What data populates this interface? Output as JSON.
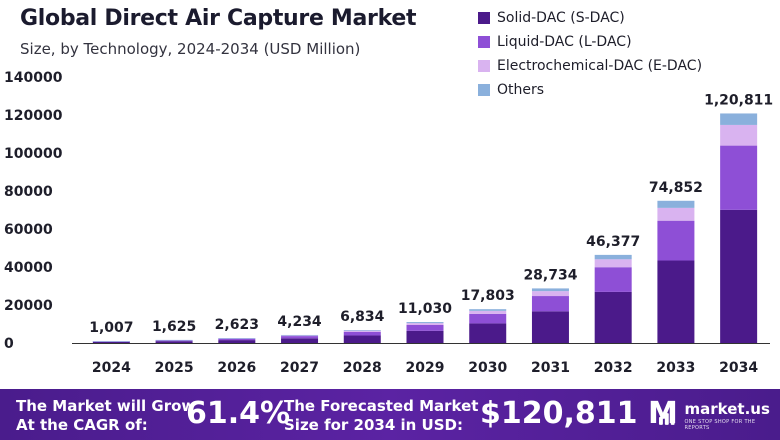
{
  "title": "Global Direct Air Capture Market",
  "subtitle": "Size, by Technology, 2024-2034 (USD Million)",
  "legend": [
    {
      "label": "Solid-DAC (S-DAC)",
      "color": "#4b1a8a"
    },
    {
      "label": "Liquid-DAC (L-DAC)",
      "color": "#8e4fd6"
    },
    {
      "label": "Electrochemical-DAC (E-DAC)",
      "color": "#d9b3f0"
    },
    {
      "label": "Others",
      "color": "#8ab0dc"
    }
  ],
  "chart_data": {
    "type": "bar",
    "stacked": true,
    "categories": [
      "2024",
      "2025",
      "2026",
      "2027",
      "2028",
      "2029",
      "2030",
      "2031",
      "2032",
      "2033",
      "2034"
    ],
    "totals": [
      1007,
      1625,
      2623,
      4234,
      6834,
      11030,
      17803,
      28734,
      46377,
      74852,
      120811
    ],
    "total_labels": [
      "1,007",
      "1,625",
      "2,623",
      "4,234",
      "6,834",
      "11,030",
      "17,803",
      "28,734",
      "46,377",
      "74,852",
      "1,20,811"
    ],
    "series": [
      {
        "name": "Solid-DAC (S-DAC)",
        "values": [
          584,
          943,
          1521,
          2456,
          3964,
          6397,
          10326,
          16666,
          26899,
          43414,
          70070
        ]
      },
      {
        "name": "Liquid-DAC (L-DAC)",
        "values": [
          282,
          455,
          734,
          1186,
          1914,
          3088,
          4985,
          8046,
          12986,
          20959,
          33827
        ]
      },
      {
        "name": "Electrochemical-DAC (E-DAC)",
        "values": [
          91,
          146,
          236,
          381,
          615,
          993,
          1602,
          2586,
          4174,
          6737,
          10873
        ]
      },
      {
        "name": "Others",
        "values": [
          50,
          81,
          132,
          211,
          341,
          552,
          890,
          1436,
          2318,
          3742,
          6041
        ]
      }
    ],
    "yticks": [
      "0",
      "20000",
      "40000",
      "60000",
      "80000",
      "100000",
      "120000",
      "140000"
    ],
    "ytick_values": [
      0,
      20000,
      40000,
      60000,
      80000,
      100000,
      120000,
      140000
    ],
    "ylim": [
      0,
      140000
    ],
    "xlabel": "",
    "ylabel": "",
    "grid": false
  },
  "footer": {
    "cagr_label": "The Market will Grow\nAt the CAGR of:",
    "cagr_value": "61.4%",
    "size_label": "The Forecasted Market\nSize for 2034 in USD:",
    "size_value": "$120,811 M",
    "logo_text": "market.us",
    "logo_tagline": "ONE STOP SHOP FOR THE REPORTS",
    "logo_icon": "bar-chart-icon"
  },
  "colors": {
    "footer_bg": "#4a1c8c",
    "axis": "#333333"
  }
}
